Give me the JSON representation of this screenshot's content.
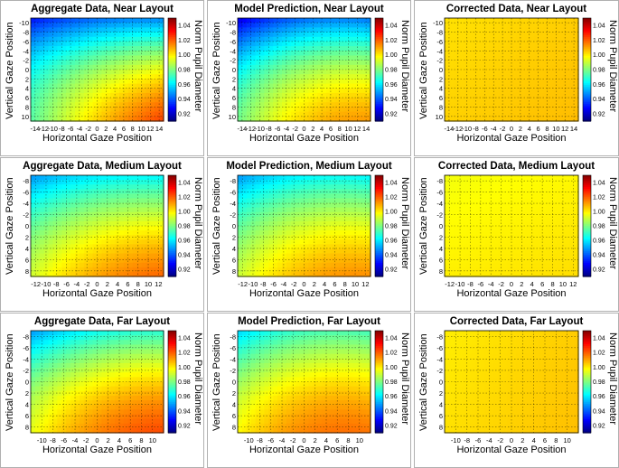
{
  "figure": {
    "type": "grid-of-heatmaps",
    "rows": 3,
    "cols": 3
  },
  "chart_data": [
    {
      "type": "heatmap",
      "title": "Aggregate Data, Near Layout",
      "xlabel": "Horizontal Gaze Position",
      "ylabel": "Vertical Gaze Position",
      "colorbar_label": "Norm Pupil Diameter",
      "x_ticks": [
        "-14",
        "-12",
        "-10",
        "-8",
        "-6",
        "-4",
        "-2",
        "0",
        "2",
        "4",
        "6",
        "8",
        "10",
        "12",
        "14"
      ],
      "y_ticks": [
        "-10",
        "-8",
        "-6",
        "-4",
        "-2",
        "0",
        "2",
        "4",
        "6",
        "8",
        "10"
      ],
      "xlim": [
        -15,
        15
      ],
      "ylim": [
        -11,
        11
      ],
      "colorbar_ticks": [
        "0.92",
        "0.94",
        "0.96",
        "0.98",
        "1.00",
        "1.02",
        "1.04"
      ],
      "clim": [
        0.91,
        1.05
      ],
      "field": {
        "a": 0.9835,
        "bx": 0.0011,
        "by": 0.0028,
        "cxx": -2e-05,
        "cyy": -9e-05,
        "cxy": 5e-05
      }
    },
    {
      "type": "heatmap",
      "title": "Model Prediction, Near Layout",
      "xlabel": "Horizontal Gaze Position",
      "ylabel": "Vertical Gaze Position",
      "colorbar_label": "Norm Pupil Diameter",
      "x_ticks": [
        "-14",
        "-12",
        "-10",
        "-8",
        "-6",
        "-4",
        "-2",
        "0",
        "2",
        "4",
        "6",
        "8",
        "10",
        "12",
        "14"
      ],
      "y_ticks": [
        "-10",
        "-8",
        "-6",
        "-4",
        "-2",
        "0",
        "2",
        "4",
        "6",
        "8",
        "10"
      ],
      "xlim": [
        -15,
        15
      ],
      "ylim": [
        -11,
        11
      ],
      "colorbar_ticks": [
        "0.92",
        "0.94",
        "0.96",
        "0.98",
        "1.00",
        "1.02",
        "1.04"
      ],
      "clim": [
        0.91,
        1.05
      ],
      "field": {
        "a": 0.9835,
        "bx": 0.0009,
        "by": 0.0028,
        "cxx": -4e-05,
        "cyy": -9e-05,
        "cxy": 2e-05
      }
    },
    {
      "type": "heatmap",
      "title": "Corrected Data, Near Layout",
      "xlabel": "Horizontal Gaze Position",
      "ylabel": "Vertical Gaze Position",
      "colorbar_label": "Norm Pupil Diameter",
      "x_ticks": [
        "-14",
        "-12",
        "-10",
        "-8",
        "-6",
        "-4",
        "-2",
        "0",
        "2",
        "4",
        "6",
        "8",
        "10",
        "12",
        "14"
      ],
      "y_ticks": [
        "-10",
        "-8",
        "-6",
        "-4",
        "-2",
        "0",
        "2",
        "4",
        "6",
        "8",
        "10"
      ],
      "xlim": [
        -15,
        15
      ],
      "ylim": [
        -11,
        11
      ],
      "colorbar_ticks": [
        "0.92",
        "0.94",
        "0.96",
        "0.98",
        "1.00",
        "1.02",
        "1.04"
      ],
      "clim": [
        0.91,
        1.05
      ],
      "field": {
        "a": 1.004,
        "bx": 0.0001,
        "by": 0.0001,
        "cxx": 0,
        "cyy": 0,
        "cxy": 0
      }
    },
    {
      "type": "heatmap",
      "title": "Aggregate Data, Medium Layout",
      "xlabel": "Horizontal Gaze Position",
      "ylabel": "Vertical Gaze Position",
      "colorbar_label": "Norm Pupil Diameter",
      "x_ticks": [
        "-12",
        "-10",
        "-8",
        "-6",
        "-4",
        "-2",
        "0",
        "2",
        "4",
        "6",
        "8",
        "10",
        "12"
      ],
      "y_ticks": [
        "-8",
        "-6",
        "-4",
        "-2",
        "0",
        "2",
        "4",
        "6",
        "8"
      ],
      "xlim": [
        -13,
        13
      ],
      "ylim": [
        -9,
        9
      ],
      "colorbar_ticks": [
        "0.92",
        "0.94",
        "0.96",
        "0.98",
        "1.00",
        "1.02",
        "1.04"
      ],
      "clim": [
        0.91,
        1.05
      ],
      "field": {
        "a": 0.991,
        "bx": 0.0008,
        "by": 0.0028,
        "cxx": -3e-05,
        "cyy": -8e-05,
        "cxy": 3e-05
      }
    },
    {
      "type": "heatmap",
      "title": "Model Prediction, Medium Layout",
      "xlabel": "Horizontal Gaze Position",
      "ylabel": "Vertical Gaze Position",
      "colorbar_label": "Norm Pupil Diameter",
      "x_ticks": [
        "-12",
        "-10",
        "-8",
        "-6",
        "-4",
        "-2",
        "0",
        "2",
        "4",
        "6",
        "8",
        "10",
        "12"
      ],
      "y_ticks": [
        "-8",
        "-6",
        "-4",
        "-2",
        "0",
        "2",
        "4",
        "6",
        "8"
      ],
      "xlim": [
        -13,
        13
      ],
      "ylim": [
        -9,
        9
      ],
      "colorbar_ticks": [
        "0.92",
        "0.94",
        "0.96",
        "0.98",
        "1.00",
        "1.02",
        "1.04"
      ],
      "clim": [
        0.91,
        1.05
      ],
      "field": {
        "a": 0.991,
        "bx": 0.0007,
        "by": 0.0026,
        "cxx": -4e-05,
        "cyy": -8e-05,
        "cxy": 2e-05
      }
    },
    {
      "type": "heatmap",
      "title": "Corrected Data, Medium Layout",
      "xlabel": "Horizontal Gaze Position",
      "ylabel": "Vertical Gaze Position",
      "colorbar_label": "Norm Pupil Diameter",
      "x_ticks": [
        "-12",
        "-10",
        "-8",
        "-6",
        "-4",
        "-2",
        "0",
        "2",
        "4",
        "6",
        "8",
        "10",
        "12"
      ],
      "y_ticks": [
        "-8",
        "-6",
        "-4",
        "-2",
        "0",
        "2",
        "4",
        "6",
        "8"
      ],
      "xlim": [
        -13,
        13
      ],
      "ylim": [
        -9,
        9
      ],
      "colorbar_ticks": [
        "0.92",
        "0.94",
        "0.96",
        "0.98",
        "1.00",
        "1.02",
        "1.04"
      ],
      "clim": [
        0.91,
        1.05
      ],
      "field": {
        "a": 0.999,
        "bx": 0.0001,
        "by": 0.0002,
        "cxx": 0,
        "cyy": 0,
        "cxy": 0
      }
    },
    {
      "type": "heatmap",
      "title": "Aggregate Data, Far Layout",
      "xlabel": "Horizontal Gaze Position",
      "ylabel": "Vertical Gaze Position",
      "colorbar_label": "Norm Pupil Diameter",
      "x_ticks": [
        "-10",
        "-8",
        "-6",
        "-4",
        "-2",
        "0",
        "2",
        "4",
        "6",
        "8",
        "10"
      ],
      "y_ticks": [
        "-8",
        "-6",
        "-4",
        "-2",
        "0",
        "2",
        "4",
        "6",
        "8"
      ],
      "xlim": [
        -12,
        12
      ],
      "ylim": [
        -9,
        9
      ],
      "colorbar_ticks": [
        "0.92",
        "0.94",
        "0.96",
        "0.98",
        "1.00",
        "1.02",
        "1.04"
      ],
      "clim": [
        0.91,
        1.05
      ],
      "field": {
        "a": 0.997,
        "bx": 0.001,
        "by": 0.0028,
        "cxx": -4e-05,
        "cyy": -0.0001,
        "cxy": 2e-05
      }
    },
    {
      "type": "heatmap",
      "title": "Model Prediction, Far Layout",
      "xlabel": "Horizontal Gaze Position",
      "ylabel": "Vertical Gaze Position",
      "colorbar_label": "Norm Pupil Diameter",
      "x_ticks": [
        "-10",
        "-8",
        "-6",
        "-4",
        "-2",
        "0",
        "2",
        "4",
        "6",
        "8",
        "10"
      ],
      "y_ticks": [
        "-8",
        "-6",
        "-4",
        "-2",
        "0",
        "2",
        "4",
        "6",
        "8"
      ],
      "xlim": [
        -12,
        12
      ],
      "ylim": [
        -9,
        9
      ],
      "colorbar_ticks": [
        "0.92",
        "0.94",
        "0.96",
        "0.98",
        "1.00",
        "1.02",
        "1.04"
      ],
      "clim": [
        0.91,
        1.05
      ],
      "field": {
        "a": 0.999,
        "bx": 0.0007,
        "by": 0.0024,
        "cxx": -5e-05,
        "cyy": -8e-05,
        "cxy": 1e-05
      }
    },
    {
      "type": "heatmap",
      "title": "Corrected Data, Far Layout",
      "xlabel": "Horizontal Gaze Position",
      "ylabel": "Vertical Gaze Position",
      "colorbar_label": "Norm Pupil Diameter",
      "x_ticks": [
        "-10",
        "-8",
        "-6",
        "-4",
        "-2",
        "0",
        "2",
        "4",
        "6",
        "8",
        "10"
      ],
      "y_ticks": [
        "-8",
        "-6",
        "-4",
        "-2",
        "0",
        "2",
        "4",
        "6",
        "8"
      ],
      "xlim": [
        -12,
        12
      ],
      "ylim": [
        -9,
        9
      ],
      "colorbar_ticks": [
        "0.92",
        "0.94",
        "0.96",
        "0.98",
        "1.00",
        "1.02",
        "1.04"
      ],
      "clim": [
        0.91,
        1.05
      ],
      "field": {
        "a": 1.003,
        "bx": 0.0002,
        "by": 0.0001,
        "cxx": 0,
        "cyy": 0,
        "cxy": 0
      }
    }
  ]
}
